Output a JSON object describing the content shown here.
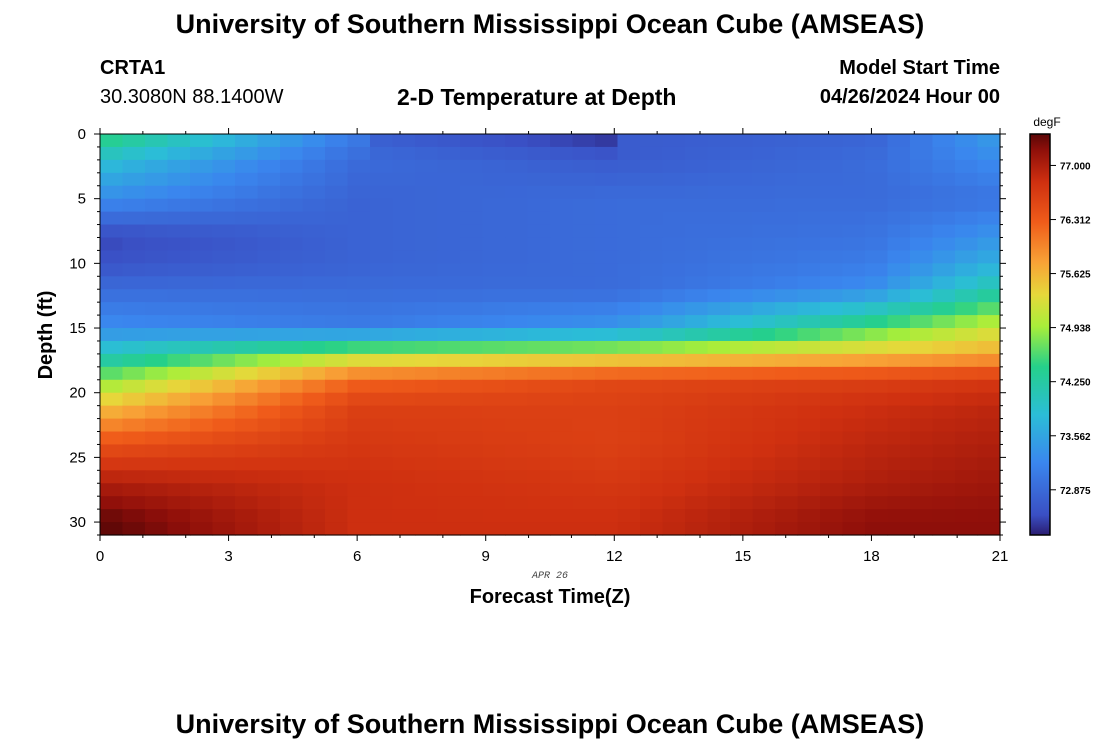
{
  "header": {
    "title": "University of Southern Mississippi Ocean Cube (AMSEAS)",
    "station": "CRTA1",
    "coords": "30.3080N  88.1400W",
    "plot_title": "2-D Temperature at Depth",
    "model_start_label": "Model Start Time",
    "model_start_value": "04/26/2024 Hour 00"
  },
  "footer": {
    "title": "University of Southern Mississippi Ocean Cube (AMSEAS)"
  },
  "chart_data": {
    "type": "heatmap",
    "title": "2-D Temperature at Depth",
    "xlabel": "Forecast Time(Z)",
    "ylabel": "Depth (ft)",
    "x_ticks": [
      0,
      3,
      6,
      9,
      12,
      15,
      18,
      21
    ],
    "y_ticks": [
      0,
      5,
      10,
      15,
      20,
      25,
      30
    ],
    "xlim": [
      0,
      21
    ],
    "ylim": [
      0,
      31
    ],
    "date_annotation": "APR 26",
    "colorbar": {
      "unit": "degF",
      "labels": [
        "77.000",
        "76.312",
        "75.625",
        "74.938",
        "74.250",
        "73.562",
        "72.875"
      ],
      "min": 72.3,
      "max": 77.4
    },
    "depth_profile": {
      "description": "Approximate temperature (degF) by depth at forecast hours 0, 6, 12, 18, 21",
      "hours": [
        0,
        6,
        12,
        18,
        21
      ],
      "depths": [
        0,
        2,
        5,
        8,
        10,
        12,
        15,
        17,
        19,
        21,
        24,
        27,
        30
      ],
      "values": [
        [
          74.6,
          73.1,
          72.7,
          72.8,
          73.5
        ],
        [
          73.9,
          72.9,
          72.7,
          72.9,
          73.3
        ],
        [
          73.3,
          72.8,
          72.9,
          72.9,
          73.0
        ],
        [
          72.5,
          72.8,
          72.9,
          73.0,
          73.4
        ],
        [
          72.6,
          72.8,
          72.9,
          73.1,
          73.7
        ],
        [
          72.9,
          72.9,
          72.9,
          73.3,
          74.2
        ],
        [
          73.3,
          73.1,
          73.4,
          74.6,
          75.2
        ],
        [
          74.0,
          75.0,
          75.2,
          75.5,
          75.7
        ],
        [
          74.8,
          76.2,
          76.5,
          76.6,
          76.7
        ],
        [
          75.5,
          76.6,
          76.6,
          76.8,
          76.9
        ],
        [
          76.4,
          76.7,
          76.6,
          76.9,
          77.0
        ],
        [
          77.0,
          76.8,
          76.7,
          77.0,
          77.1
        ],
        [
          77.4,
          76.8,
          76.8,
          77.2,
          77.2
        ]
      ]
    }
  }
}
